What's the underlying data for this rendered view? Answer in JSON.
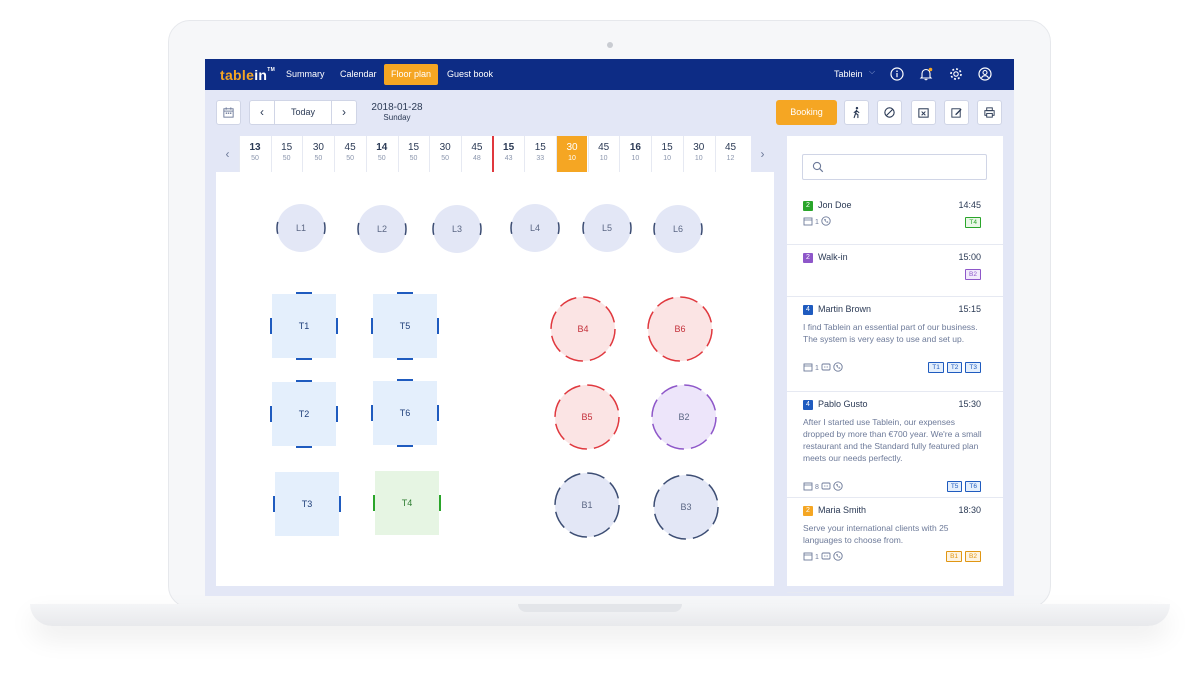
{
  "app": {
    "logo_main": "table",
    "logo_in": "in",
    "logo_tm": "TM",
    "nav": [
      "Summary",
      "Calendar",
      "Floor plan",
      "Guest book"
    ],
    "active_nav": "Floor plan",
    "venue": "Tablein"
  },
  "toolbar": {
    "today_label": "Today",
    "date": "2018-01-28",
    "weekday": "Sunday",
    "booking_label": "Booking",
    "prev_arrow": "‹",
    "next_arrow": "›"
  },
  "timeline": {
    "slots": [
      {
        "time": "13",
        "count": "50",
        "hour": true
      },
      {
        "time": "15",
        "count": "50",
        "hour": false
      },
      {
        "time": "30",
        "count": "50",
        "hour": false
      },
      {
        "time": "45",
        "count": "50",
        "hour": false
      },
      {
        "time": "14",
        "count": "50",
        "hour": true
      },
      {
        "time": "15",
        "count": "50",
        "hour": false
      },
      {
        "time": "30",
        "count": "50",
        "hour": false
      },
      {
        "time": "45",
        "count": "48",
        "hour": false
      },
      {
        "time": "15",
        "count": "43",
        "hour": true
      },
      {
        "time": "15",
        "count": "33",
        "hour": false
      },
      {
        "time": "30",
        "count": "10",
        "hour": false,
        "selected": true
      },
      {
        "time": "45",
        "count": "10",
        "hour": false
      },
      {
        "time": "16",
        "count": "10",
        "hour": true
      },
      {
        "time": "15",
        "count": "10",
        "hour": false
      },
      {
        "time": "30",
        "count": "10",
        "hour": false
      },
      {
        "time": "45",
        "count": "12",
        "hour": false
      }
    ]
  },
  "floor": {
    "tables": [
      {
        "label": "L1",
        "shape": "circle",
        "status": "free"
      },
      {
        "label": "L2",
        "shape": "circle",
        "status": "free"
      },
      {
        "label": "L3",
        "shape": "circle",
        "status": "free"
      },
      {
        "label": "L4",
        "shape": "circle",
        "status": "free"
      },
      {
        "label": "L5",
        "shape": "circle",
        "status": "free"
      },
      {
        "label": "L6",
        "shape": "circle",
        "status": "free"
      },
      {
        "label": "T1",
        "shape": "square",
        "status": "reserved"
      },
      {
        "label": "T5",
        "shape": "square",
        "status": "reserved"
      },
      {
        "label": "T2",
        "shape": "square",
        "status": "reserved"
      },
      {
        "label": "T6",
        "shape": "square",
        "status": "reserved"
      },
      {
        "label": "T3",
        "shape": "square",
        "status": "reserved"
      },
      {
        "label": "T4",
        "shape": "square",
        "status": "seated"
      },
      {
        "label": "B4",
        "shape": "circle",
        "status": "late"
      },
      {
        "label": "B6",
        "shape": "circle",
        "status": "late"
      },
      {
        "label": "B5",
        "shape": "circle",
        "status": "late"
      },
      {
        "label": "B2",
        "shape": "circle",
        "status": "walkin"
      },
      {
        "label": "B1",
        "shape": "circle",
        "status": "free"
      },
      {
        "label": "B3",
        "shape": "circle",
        "status": "free"
      }
    ]
  },
  "colors": {
    "navy": "#0d2c85",
    "accent": "#f5a623",
    "seated": "#2aa52a",
    "late": "#e0383e",
    "walkin": "#8e57c9",
    "reserved": "#1f5bbf"
  },
  "reservations": [
    {
      "guests": "2",
      "name": "Jon Doe",
      "time": "14:45",
      "note": "",
      "visits": "1",
      "has_comment": false,
      "has_phone": true,
      "tables": [
        "T4"
      ],
      "color": "#2aa52a"
    },
    {
      "guests": "2",
      "name": "Walk-in",
      "time": "15:00",
      "note": "",
      "visits": "",
      "has_comment": false,
      "has_phone": false,
      "tables": [
        "B2"
      ],
      "color": "#8e57c9"
    },
    {
      "guests": "4",
      "name": "Martin Brown",
      "time": "15:15",
      "note": "I find Tablein an essential part of our business. The system is very easy to use and set up.",
      "visits": "1",
      "has_comment": true,
      "has_phone": true,
      "tables": [
        "T1",
        "T2",
        "T3"
      ],
      "color": "#1f5bbf"
    },
    {
      "guests": "4",
      "name": "Pablo Gusto",
      "time": "15:30",
      "note": "After I started use Tablein, our expenses dropped by more than €700 year. We're a small restaurant and the Standard fully featured plan meets our needs perfectly.",
      "visits": "8",
      "has_comment": true,
      "has_phone": true,
      "tables": [
        "T5",
        "T6"
      ],
      "color": "#1f5bbf"
    },
    {
      "guests": "2",
      "name": "Maria Smith",
      "time": "18:30",
      "note": "Serve your international clients with 25 languages to choose from.",
      "visits": "1",
      "has_comment": true,
      "has_phone": true,
      "tables": [
        "B1",
        "B2"
      ],
      "color": "#f5a623"
    }
  ]
}
